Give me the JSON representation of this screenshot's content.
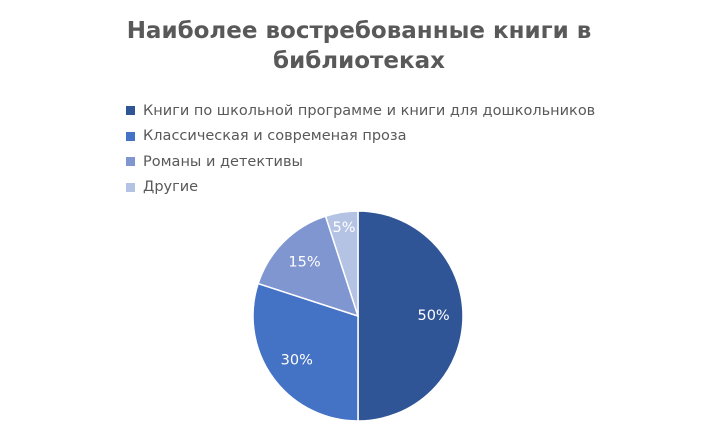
{
  "chart_data": {
    "type": "pie",
    "title": [
      "Наиболее востребованные книги в",
      "библиотеках"
    ],
    "categories": [
      "Книги по школьной программе и книги для дошкольников",
      "Классическая и современая проза",
      "Романы и детективы",
      "Другие"
    ],
    "values": [
      50,
      30,
      15,
      5
    ],
    "data_labels": [
      "50%",
      "30%",
      "15%",
      "5%"
    ],
    "colors": [
      "#2f5597",
      "#4472c4",
      "#7f96d0",
      "#b4c3e4"
    ],
    "legend_position": "top-left",
    "start_angle": "12 o'clock, clockwise"
  }
}
